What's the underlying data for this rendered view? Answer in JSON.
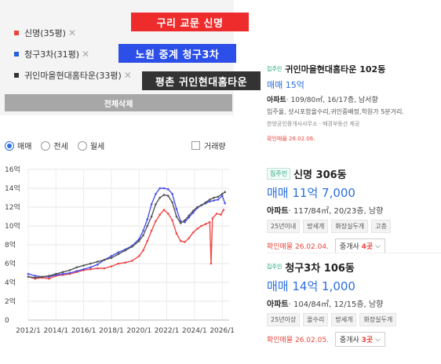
{
  "filters": [
    {
      "label": "신명(35평)",
      "color": "#e8453c"
    },
    {
      "label": "청구3차(31평)",
      "color": "#2b5fd9"
    },
    {
      "label": "귀인마을현대홈타운(33평)",
      "color": "#333333"
    }
  ],
  "remove_symbol": "✕",
  "overlays": [
    {
      "text": "구리 교문 신명",
      "color": "#ee2c2c"
    },
    {
      "text": "노원 중계 청구3차",
      "color": "#2b4fe8"
    },
    {
      "text": "평촌 귀인현대홈타운",
      "color": "#333333"
    }
  ],
  "reset_label": "전체삭제",
  "trade_types": [
    {
      "label": "매매",
      "selected": true
    },
    {
      "label": "전세",
      "selected": false
    },
    {
      "label": "월세",
      "selected": false
    }
  ],
  "volume_label": "거래량",
  "chart_data": {
    "type": "line",
    "y_ticks": [
      "16억",
      "14억",
      "12억",
      "10억",
      "8억",
      "6억",
      "4억",
      "2억",
      "0"
    ],
    "x_ticks": [
      "2012/1",
      "2014/1",
      "2016/1",
      "2018/1",
      "2020/1",
      "2022/1",
      "2024/1",
      "2026/1"
    ],
    "ylim": [
      0,
      16
    ],
    "xlim": [
      2012.0,
      2026.5
    ],
    "grid": true,
    "series": [
      {
        "name": "신명(35평)",
        "color": "#f04848",
        "points": [
          [
            2012.0,
            4.6
          ],
          [
            2012.5,
            4.4
          ],
          [
            2013.0,
            4.5
          ],
          [
            2013.5,
            4.4
          ],
          [
            2014.0,
            4.7
          ],
          [
            2014.5,
            4.8
          ],
          [
            2015.0,
            4.9
          ],
          [
            2015.5,
            5.1
          ],
          [
            2016.0,
            5.3
          ],
          [
            2016.5,
            5.4
          ],
          [
            2017.0,
            5.5
          ],
          [
            2017.5,
            5.5
          ],
          [
            2018.0,
            5.7
          ],
          [
            2018.5,
            6.0
          ],
          [
            2019.0,
            6.1
          ],
          [
            2019.5,
            6.3
          ],
          [
            2020.0,
            6.8
          ],
          [
            2020.3,
            7.4
          ],
          [
            2020.6,
            8.4
          ],
          [
            2020.9,
            9.5
          ],
          [
            2021.2,
            10.5
          ],
          [
            2021.5,
            11.2
          ],
          [
            2021.8,
            11.7
          ],
          [
            2022.1,
            11.3
          ],
          [
            2022.4,
            10.6
          ],
          [
            2022.7,
            9.2
          ],
          [
            2023.0,
            8.4
          ],
          [
            2023.3,
            8.3
          ],
          [
            2023.6,
            8.7
          ],
          [
            2023.9,
            9.3
          ],
          [
            2024.2,
            9.7
          ],
          [
            2024.5,
            10.0
          ],
          [
            2024.8,
            10.2
          ],
          [
            2025.1,
            10.4
          ],
          [
            2025.2,
            6.0
          ],
          [
            2025.3,
            10.8
          ],
          [
            2025.6,
            11.3
          ],
          [
            2025.9,
            11.2
          ],
          [
            2026.1,
            11.7
          ]
        ]
      },
      {
        "name": "청구3차(31평)",
        "color": "#4a52ec",
        "points": [
          [
            2012.0,
            4.9
          ],
          [
            2012.5,
            4.7
          ],
          [
            2013.0,
            4.6
          ],
          [
            2013.5,
            4.6
          ],
          [
            2014.0,
            4.8
          ],
          [
            2014.5,
            4.9
          ],
          [
            2015.0,
            5.0
          ],
          [
            2015.5,
            5.2
          ],
          [
            2016.0,
            5.4
          ],
          [
            2016.5,
            5.6
          ],
          [
            2017.0,
            5.9
          ],
          [
            2017.5,
            6.4
          ],
          [
            2018.0,
            6.8
          ],
          [
            2018.5,
            7.2
          ],
          [
            2019.0,
            7.5
          ],
          [
            2019.5,
            7.9
          ],
          [
            2020.0,
            8.6
          ],
          [
            2020.3,
            9.5
          ],
          [
            2020.6,
            10.7
          ],
          [
            2020.9,
            12.3
          ],
          [
            2021.2,
            13.4
          ],
          [
            2021.5,
            14.0
          ],
          [
            2021.8,
            14.0
          ],
          [
            2022.1,
            13.9
          ],
          [
            2022.4,
            13.4
          ],
          [
            2022.7,
            11.8
          ],
          [
            2023.0,
            10.5
          ],
          [
            2023.3,
            10.4
          ],
          [
            2023.6,
            10.9
          ],
          [
            2023.9,
            11.4
          ],
          [
            2024.2,
            11.9
          ],
          [
            2024.5,
            12.2
          ],
          [
            2024.8,
            12.4
          ],
          [
            2025.1,
            12.6
          ],
          [
            2025.4,
            12.7
          ],
          [
            2025.7,
            12.8
          ],
          [
            2026.0,
            13.2
          ],
          [
            2026.2,
            12.4
          ]
        ]
      },
      {
        "name": "귀인마을현대홈타운(33평)",
        "color": "#555555",
        "points": [
          [
            2012.0,
            4.6
          ],
          [
            2012.5,
            4.5
          ],
          [
            2013.0,
            4.6
          ],
          [
            2013.5,
            4.7
          ],
          [
            2014.0,
            4.9
          ],
          [
            2014.5,
            5.1
          ],
          [
            2015.0,
            5.3
          ],
          [
            2015.5,
            5.6
          ],
          [
            2016.0,
            5.8
          ],
          [
            2016.5,
            6.0
          ],
          [
            2017.0,
            6.2
          ],
          [
            2017.5,
            6.4
          ],
          [
            2018.0,
            6.6
          ],
          [
            2018.5,
            7.0
          ],
          [
            2019.0,
            7.4
          ],
          [
            2019.5,
            7.8
          ],
          [
            2020.0,
            8.4
          ],
          [
            2020.3,
            9.0
          ],
          [
            2020.6,
            10.0
          ],
          [
            2020.9,
            11.0
          ],
          [
            2021.2,
            12.3
          ],
          [
            2021.5,
            13.0
          ],
          [
            2021.8,
            13.3
          ],
          [
            2022.1,
            13.2
          ],
          [
            2022.4,
            12.5
          ],
          [
            2022.7,
            11.0
          ],
          [
            2023.0,
            10.3
          ],
          [
            2023.3,
            10.6
          ],
          [
            2023.6,
            11.1
          ],
          [
            2023.9,
            11.6
          ],
          [
            2024.2,
            12.0
          ],
          [
            2024.5,
            12.2
          ],
          [
            2024.8,
            12.5
          ],
          [
            2025.1,
            12.8
          ],
          [
            2025.4,
            13.0
          ],
          [
            2025.7,
            13.1
          ],
          [
            2026.0,
            13.4
          ],
          [
            2026.2,
            13.6
          ]
        ]
      }
    ]
  },
  "cards": [
    {
      "tag": "집주인",
      "name": "귀인마을현대홈타운 102동",
      "price": "매매 15억",
      "spec_type": "아파트",
      "spec": "· 109/80㎡, 16/17층, 남서향",
      "desc": "입주율, 샷시포함올수리,귀인중배정,학원가 5분거리.",
      "source": "한양공인중개사사무소 · 매경부동산 제공",
      "confirm": "확인매물 26.02.06."
    },
    {
      "tag": "집주인",
      "name": "신명 306동",
      "price": "매매 11억 7,000",
      "spec_type": "아파트",
      "spec": "· 117/84㎡, 20/23층, 남향",
      "chips": [
        "25년이내",
        "방세개",
        "화장실두개",
        "고층"
      ],
      "confirm": "확인매물 26.02.04.",
      "agent_prefix": "중개사 ",
      "agent_count": "4곳",
      "agent_chevron": "⌵"
    },
    {
      "tag": "집주인",
      "name": "청구3차 106동",
      "price": "매매 14억 1,000",
      "spec_type": "아파트",
      "spec": "· 104/84㎡, 12/15층, 남향",
      "chips": [
        "25년이상",
        "올수리",
        "방세개",
        "화장실두개"
      ],
      "confirm": "확인매물 26.02.05.",
      "agent_prefix": "중개사 ",
      "agent_count": "3곳",
      "agent_chevron": "⌵"
    }
  ]
}
